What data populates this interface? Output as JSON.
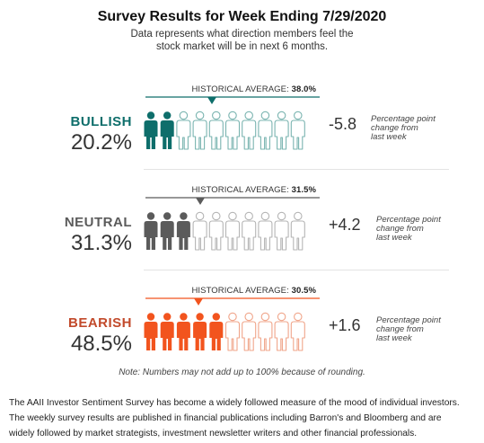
{
  "title": "Survey Results for Week Ending 7/29/2020",
  "subtitle_line1": "Data represents what direction members feel the",
  "subtitle_line2": "stock market will be in next 6 months.",
  "chart_data": {
    "type": "pictograph",
    "icons_per_row": 10,
    "rows": [
      {
        "label": "BULLISH",
        "value": 20.2,
        "value_text": "20.2%",
        "hist_label": "HISTORICAL AVERAGE:",
        "hist_avg": 38.0,
        "hist_avg_text": "38.0%",
        "change_text": "-5.8",
        "change_note": [
          "Percentage point",
          "change from",
          "last week"
        ],
        "color": "#0e6e6b",
        "outline": "#7ab4b0"
      },
      {
        "label": "NEUTRAL",
        "value": 31.3,
        "value_text": "31.3%",
        "hist_label": "HISTORICAL AVERAGE:",
        "hist_avg": 31.5,
        "hist_avg_text": "31.5%",
        "change_text": "+4.2",
        "change_note": [
          "Percentage point",
          "change from",
          "last week"
        ],
        "color": "#5b5b5b",
        "outline": "#b5b5b5"
      },
      {
        "label": "BEARISH",
        "value": 48.5,
        "value_text": "48.5%",
        "hist_label": "HISTORICAL AVERAGE:",
        "hist_avg": 30.5,
        "hist_avg_text": "30.5%",
        "change_text": "+1.6",
        "change_note": [
          "Percentage point",
          "change from",
          "last week"
        ],
        "color": "#f2541e",
        "outline": "#f0a58a",
        "label_color": "#c24a2b"
      }
    ]
  },
  "note": "Note: Numbers may not add up to 100% because of rounding.",
  "footer": [
    "The AAII Investor Sentiment Survey has become a widely followed measure of the mood of individual investors.",
    "The weekly survey results are published in  financial publications including Barron's and Bloomberg and are",
    "widely followed by market strategists, investment newsletter writers and other financial professionals."
  ]
}
